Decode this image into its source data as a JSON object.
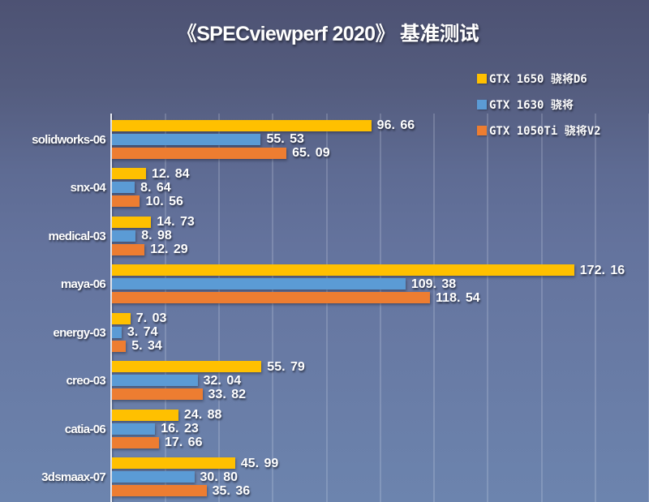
{
  "title": {
    "text": "《SPECviewperf 2020》 基准测试"
  },
  "legend": {
    "items": [
      {
        "label": "GTX 1650 骁将D6",
        "color": "#FFC000"
      },
      {
        "label": "GTX 1630 骁将",
        "color": "#5B9BD5"
      },
      {
        "label": "GTX 1050Ti 骁将V2",
        "color": "#ED7D31"
      }
    ]
  },
  "chart_data": {
    "type": "bar",
    "orientation": "horizontal",
    "title": "《SPECviewperf 2020》 基准测试",
    "categories": [
      "solidworks-06",
      "snx-04",
      "medical-03",
      "maya-06",
      "energy-03",
      "creo-03",
      "catia-06",
      "3dsmaax-07"
    ],
    "series": [
      {
        "name": "GTX 1650 骁将D6",
        "color": "#FFC000",
        "values": [
          96.66,
          12.84,
          14.73,
          172.16,
          7.03,
          55.79,
          24.88,
          45.99
        ],
        "labels": [
          "96. 66",
          "12. 84",
          "14. 73",
          "172. 16",
          "7. 03",
          "55. 79",
          "24. 88",
          "45. 99"
        ]
      },
      {
        "name": "GTX 1630 骁将",
        "color": "#5B9BD5",
        "values": [
          55.53,
          8.64,
          8.98,
          109.38,
          3.74,
          32.04,
          16.23,
          30.8
        ],
        "labels": [
          "55. 53",
          "8. 64",
          "8. 98",
          "109. 38",
          "3. 74",
          "32. 04",
          "16. 23",
          "30. 80"
        ]
      },
      {
        "name": "GTX 1050Ti 骁将V2",
        "color": "#ED7D31",
        "values": [
          65.09,
          10.56,
          12.29,
          118.54,
          5.34,
          33.82,
          17.66,
          35.36
        ],
        "labels": [
          "65. 09",
          "10. 56",
          "12. 29",
          "118. 54",
          "5. 34",
          "33. 82",
          "17. 66",
          "35. 36"
        ]
      }
    ],
    "xlim": [
      0,
      200
    ],
    "grid_step": 20,
    "grid": "vertical-lines",
    "legend_position": "top-right",
    "value_labels": "outside-end",
    "xlabel": "",
    "ylabel": ""
  },
  "colors": {
    "background_top": "#4d5273",
    "background_bottom": "#6c84ae",
    "bar_yellow": "#FFC000",
    "bar_blue": "#5B9BD5",
    "bar_orange": "#ED7D31",
    "axis_line": "#e9ecf4",
    "gridline": "rgba(235,240,250,0.19)",
    "text": "#ffffff"
  }
}
